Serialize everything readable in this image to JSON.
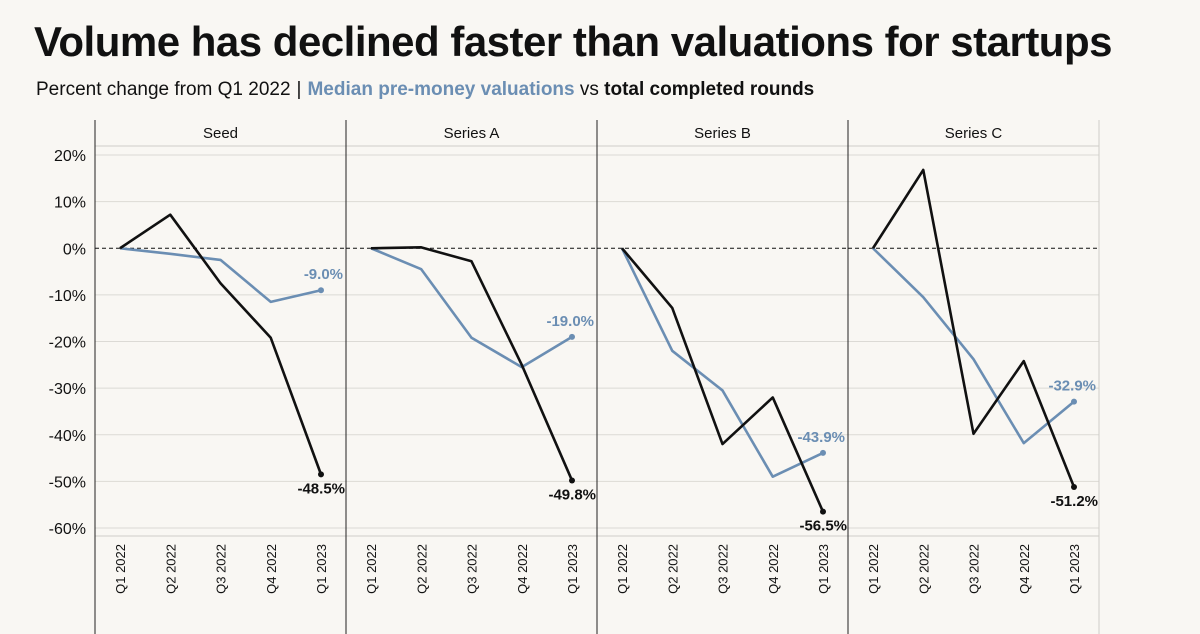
{
  "chart_data": {
    "type": "line",
    "title": "Volume has declined faster than valuations for startups",
    "subtitle": {
      "prefix": "Percent change from Q1 2022",
      "separator": "|",
      "valuation_label": "Median pre-money valuations",
      "connector": "vs",
      "volume_label": "total completed rounds"
    },
    "categories": [
      "Q1 2022",
      "Q2 2022",
      "Q3 2022",
      "Q4 2022",
      "Q1 2023"
    ],
    "yaxis": {
      "min": -60,
      "max": 20,
      "ticks": [
        20,
        10,
        0,
        -10,
        -20,
        -30,
        -40,
        -50,
        -60
      ],
      "tick_labels": [
        "20%",
        "10%",
        "0%",
        "-10%",
        "-20%",
        "-30%",
        "-40%",
        "-50%",
        "-60%"
      ]
    },
    "colors": {
      "valuations": "#6b8eb3",
      "rounds": "#111111",
      "background": "#f9f7f3"
    },
    "grid": true,
    "zero_line": "dashed",
    "panels": [
      {
        "name": "Seed",
        "valuations": [
          0,
          -1.2,
          -2.5,
          -11.5,
          -9.0
        ],
        "rounds": [
          0,
          7.2,
          -7.5,
          -19.2,
          -48.5
        ],
        "valuation_label": "-9.0%",
        "rounds_label": "-48.5%"
      },
      {
        "name": "Series A",
        "valuations": [
          0,
          -4.5,
          -19.2,
          -25.5,
          -19.0
        ],
        "rounds": [
          0,
          0.2,
          -2.8,
          -25.0,
          -49.8
        ],
        "valuation_label": "-19.0%",
        "rounds_label": "-49.8%"
      },
      {
        "name": "Series B",
        "valuations": [
          0,
          -22.0,
          -30.5,
          -49.0,
          -43.9
        ],
        "rounds": [
          0,
          -12.8,
          -42.0,
          -32.0,
          -56.5
        ],
        "valuation_label": "-43.9%",
        "rounds_label": "-56.5%"
      },
      {
        "name": "Series C",
        "valuations": [
          0,
          -10.5,
          -23.8,
          -41.8,
          -32.9
        ],
        "rounds": [
          0,
          16.8,
          -39.8,
          -24.2,
          -51.2
        ],
        "valuation_label": "-32.9%",
        "rounds_label": "-51.2%"
      }
    ]
  }
}
